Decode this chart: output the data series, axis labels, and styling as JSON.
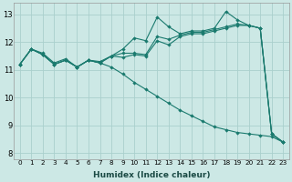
{
  "xlabel": "Humidex (Indice chaleur)",
  "ylabel": "",
  "xlim": [
    -0.5,
    23.5
  ],
  "ylim": [
    7.8,
    13.4
  ],
  "yticks": [
    8,
    9,
    10,
    11,
    12,
    13
  ],
  "xticks": [
    0,
    1,
    2,
    3,
    4,
    5,
    6,
    7,
    8,
    9,
    10,
    11,
    12,
    13,
    14,
    15,
    16,
    17,
    18,
    19,
    20,
    21,
    22,
    23
  ],
  "bg_color": "#cce8e5",
  "grid_color": "#aad0cd",
  "line_color": "#1a7a6e",
  "line1": [
    11.2,
    11.75,
    11.6,
    11.25,
    11.4,
    11.1,
    11.35,
    11.3,
    11.5,
    11.75,
    12.15,
    12.05,
    12.9,
    12.55,
    12.3,
    12.4,
    12.4,
    12.5,
    13.1,
    12.8,
    12.6,
    12.5,
    8.7,
    8.4
  ],
  "line2": [
    11.2,
    11.75,
    11.55,
    11.2,
    11.35,
    11.1,
    11.35,
    11.25,
    11.5,
    11.6,
    11.6,
    11.55,
    12.2,
    12.1,
    12.25,
    12.35,
    12.35,
    12.45,
    12.55,
    12.65,
    12.6,
    12.5,
    8.7,
    8.4
  ],
  "line3": [
    11.2,
    11.75,
    11.55,
    11.2,
    11.35,
    11.1,
    11.35,
    11.25,
    11.5,
    11.45,
    11.55,
    11.5,
    12.05,
    11.9,
    12.2,
    12.3,
    12.3,
    12.4,
    12.5,
    12.6,
    12.6,
    12.5,
    8.7,
    8.4
  ],
  "line4": [
    11.2,
    11.75,
    11.55,
    11.2,
    11.35,
    11.1,
    11.35,
    11.25,
    11.1,
    10.85,
    10.55,
    10.3,
    10.05,
    9.8,
    9.55,
    9.35,
    9.15,
    8.95,
    8.85,
    8.75,
    8.7,
    8.65,
    8.6,
    8.4
  ]
}
